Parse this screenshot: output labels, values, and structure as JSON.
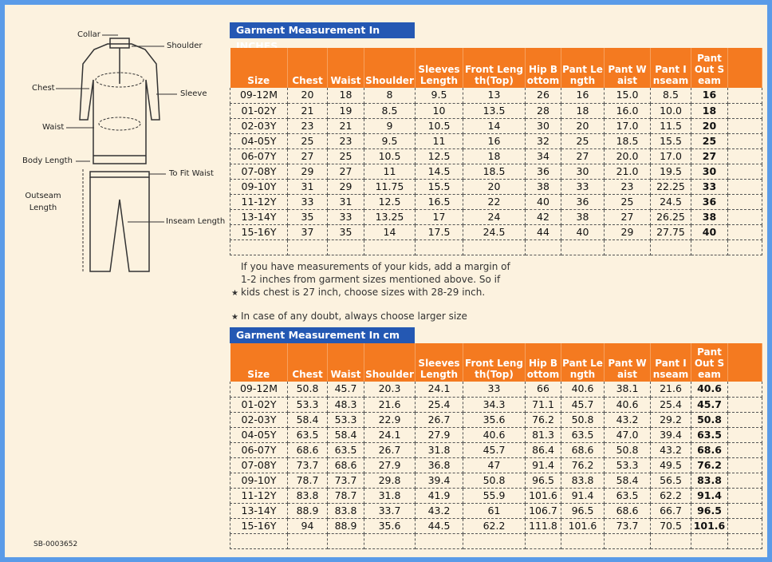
{
  "diagram": {
    "labels": {
      "collar": "Collar",
      "shoulder": "Shoulder",
      "chest": "Chest",
      "sleeve": "Sleeve",
      "waist": "Waist",
      "body_length": "Body Length",
      "to_fit_waist": "To Fit Waist",
      "outseam_length": "Outseam Length",
      "inseam_length": "Inseam Length"
    }
  },
  "code": "SB-0003652",
  "tables": [
    {
      "title": "Garment Measurement In INCHES",
      "headers": [
        "Size",
        "Chest",
        "Waist",
        "Shoulder",
        "Sleeves Length",
        "Front Length(Top)",
        "Hip Bottom",
        "Pant Length",
        "Pant Waist",
        "Pant Inseam",
        "Pant Out Seam"
      ],
      "rows": [
        [
          "09-12M",
          "20",
          "18",
          "8",
          "9.5",
          "13",
          "26",
          "16",
          "15.0",
          "8.5",
          "16"
        ],
        [
          "01-02Y",
          "21",
          "19",
          "8.5",
          "10",
          "13.5",
          "28",
          "18",
          "16.0",
          "10.0",
          "18"
        ],
        [
          "02-03Y",
          "23",
          "21",
          "9",
          "10.5",
          "14",
          "30",
          "20",
          "17.0",
          "11.5",
          "20"
        ],
        [
          "04-05Y",
          "25",
          "23",
          "9.5",
          "11",
          "16",
          "32",
          "25",
          "18.5",
          "15.5",
          "25"
        ],
        [
          "06-07Y",
          "27",
          "25",
          "10.5",
          "12.5",
          "18",
          "34",
          "27",
          "20.0",
          "17.0",
          "27"
        ],
        [
          "07-08Y",
          "29",
          "27",
          "11",
          "14.5",
          "18.5",
          "36",
          "30",
          "21.0",
          "19.5",
          "30"
        ],
        [
          "09-10Y",
          "31",
          "29",
          "11.75",
          "15.5",
          "20",
          "38",
          "33",
          "23",
          "22.25",
          "33"
        ],
        [
          "11-12Y",
          "33",
          "31",
          "12.5",
          "16.5",
          "22",
          "40",
          "36",
          "25",
          "24.5",
          "36"
        ],
        [
          "13-14Y",
          "35",
          "33",
          "13.25",
          "17",
          "24",
          "42",
          "38",
          "27",
          "26.25",
          "38"
        ],
        [
          "15-16Y",
          "37",
          "35",
          "14",
          "17.5",
          "24.5",
          "44",
          "40",
          "29",
          "27.75",
          "40"
        ]
      ]
    },
    {
      "title": "Garment Measurement In cm",
      "headers": [
        "Size",
        "Chest",
        "Waist",
        "Shoulder",
        "Sleeves Length",
        "Front Length(Top)",
        "Hip Bottom",
        "Pant Length",
        "Pant Waist",
        "Pant Inseam",
        "Pant Out Seam"
      ],
      "rows": [
        [
          "09-12M",
          "50.8",
          "45.7",
          "20.3",
          "24.1",
          "33",
          "66",
          "40.6",
          "38.1",
          "21.6",
          "40.6"
        ],
        [
          "01-02Y",
          "53.3",
          "48.3",
          "21.6",
          "25.4",
          "34.3",
          "71.1",
          "45.7",
          "40.6",
          "25.4",
          "45.7"
        ],
        [
          "02-03Y",
          "58.4",
          "53.3",
          "22.9",
          "26.7",
          "35.6",
          "76.2",
          "50.8",
          "43.2",
          "29.2",
          "50.8"
        ],
        [
          "04-05Y",
          "63.5",
          "58.4",
          "24.1",
          "27.9",
          "40.6",
          "81.3",
          "63.5",
          "47.0",
          "39.4",
          "63.5"
        ],
        [
          "06-07Y",
          "68.6",
          "63.5",
          "26.7",
          "31.8",
          "45.7",
          "86.4",
          "68.6",
          "50.8",
          "43.2",
          "68.6"
        ],
        [
          "07-08Y",
          "73.7",
          "68.6",
          "27.9",
          "36.8",
          "47",
          "91.4",
          "76.2",
          "53.3",
          "49.5",
          "76.2"
        ],
        [
          "09-10Y",
          "78.7",
          "73.7",
          "29.8",
          "39.4",
          "50.8",
          "96.5",
          "83.8",
          "58.4",
          "56.5",
          "83.8"
        ],
        [
          "11-12Y",
          "83.8",
          "78.7",
          "31.8",
          "41.9",
          "55.9",
          "101.6",
          "91.4",
          "63.5",
          "62.2",
          "91.4"
        ],
        [
          "13-14Y",
          "88.9",
          "83.8",
          "33.7",
          "43.2",
          "61",
          "106.7",
          "96.5",
          "68.6",
          "66.7",
          "96.5"
        ],
        [
          "15-16Y",
          "94",
          "88.9",
          "35.6",
          "44.5",
          "62.2",
          "111.8",
          "101.6",
          "73.7",
          "70.5",
          "101.6"
        ]
      ]
    }
  ],
  "notes": [
    "If you have measurements of your kids, add a margin of 1-2 inches from garment sizes mentioned above. So if kids chest is 27 inch, choose sizes with 28-29 inch.",
    "In case of any doubt, always choose larger size"
  ]
}
